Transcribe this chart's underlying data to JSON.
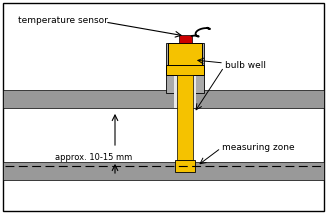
{
  "bg_color": "#ffffff",
  "border_color": "#000000",
  "yellow": "#f5c200",
  "gray_collar": "#aaaaaa",
  "gray_pipe": "#999999",
  "gray_light": "#cccccc",
  "red": "#cc0000",
  "text_color": "#000000",
  "label_temp_sensor": "temperature sensor",
  "label_bulb_well": "bulb well",
  "label_approx": "approx. 10-15 mm",
  "label_measuring_zone": "measuring zone",
  "figw": 3.27,
  "figh": 2.14,
  "dpi": 100
}
